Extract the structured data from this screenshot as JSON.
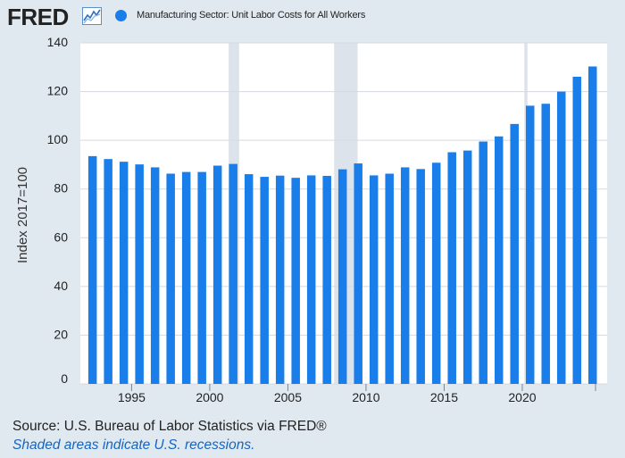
{
  "header": {
    "logo_text": "FRED",
    "logo_icon": "line-chart-icon",
    "legend_label": "Manufacturing Sector: Unit Labor Costs for All Workers"
  },
  "colors": {
    "bar": "#1a7eea",
    "recession": "#dde3ea",
    "background": "#e1e9f0",
    "plot_background": "#ffffff",
    "gridline": "#d4dae0",
    "note_link": "#1565c0"
  },
  "chart_data": {
    "type": "bar",
    "ylabel": "Index 2017=100",
    "ylim": [
      0,
      140
    ],
    "yticks": [
      0,
      20,
      40,
      60,
      80,
      100,
      120,
      140
    ],
    "xticks": [
      1995,
      2000,
      2005,
      2010,
      2015,
      2020
    ],
    "grid": true,
    "legend": "top-left",
    "categories": [
      1992,
      1993,
      1994,
      1995,
      1996,
      1997,
      1998,
      1999,
      2000,
      2001,
      2002,
      2003,
      2004,
      2005,
      2006,
      2007,
      2008,
      2009,
      2010,
      2011,
      2012,
      2013,
      2014,
      2015,
      2016,
      2017,
      2018,
      2019,
      2020,
      2021,
      2022,
      2023,
      2024
    ],
    "series": [
      {
        "name": "Manufacturing Sector: Unit Labor Costs for All Workers",
        "values": [
          93.5,
          92.3,
          91.2,
          90.1,
          88.9,
          86.3,
          87.0,
          87.0,
          89.6,
          90.3,
          86.1,
          85.0,
          85.5,
          84.6,
          85.6,
          85.4,
          88.1,
          90.5,
          85.6,
          86.3,
          88.9,
          88.2,
          90.8,
          95.1,
          95.8,
          99.5,
          101.6,
          106.7,
          114.2,
          115.0,
          120.0,
          126.1,
          130.3
        ]
      }
    ],
    "recessions": [
      [
        2001.21,
        2001.88
      ],
      [
        2007.96,
        2009.46
      ],
      [
        2020.13,
        2020.33
      ]
    ]
  },
  "footer": {
    "source": "Source: U.S. Bureau of Labor Statistics via FRED®",
    "note": "Shaded areas indicate U.S. recessions."
  }
}
